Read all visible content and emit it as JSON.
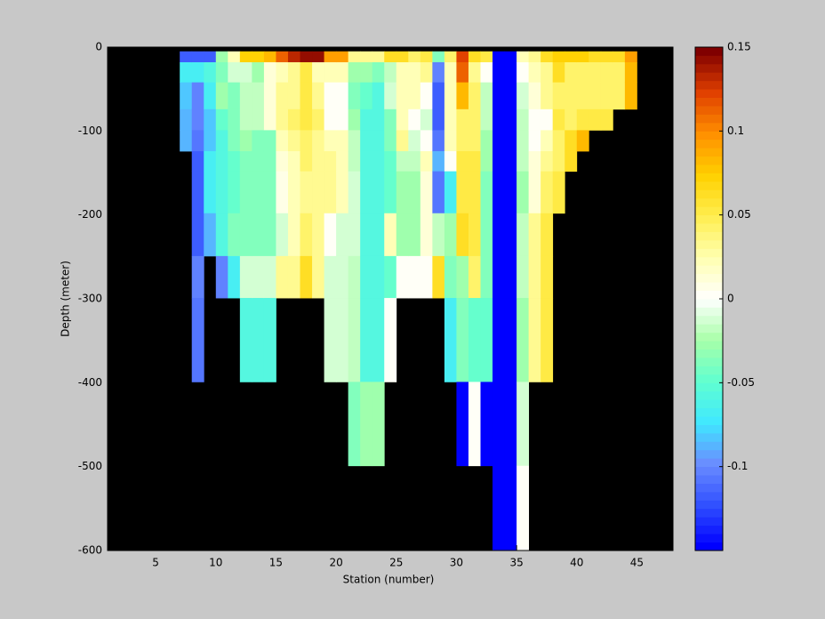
{
  "chart_data": {
    "type": "heatmap",
    "xlabel": "Station (number)",
    "ylabel": "Depth (meter)",
    "xlim": [
      1,
      48
    ],
    "xticks": [
      5,
      10,
      15,
      20,
      25,
      30,
      35,
      40,
      45
    ],
    "ylim": [
      -600,
      0
    ],
    "yticks": [
      -600,
      -500,
      -400,
      -300,
      -200,
      -100,
      0
    ],
    "background": "#000000",
    "clim": [
      -0.15,
      0.15
    ],
    "colorbar_ticks": [
      -0.1,
      -0.05,
      0,
      0.05,
      0.1,
      0.15
    ],
    "colormap": [
      "#0000ff",
      "#3050ff",
      "#6a8cff",
      "#40e8ff",
      "#60ffd0",
      "#a8ffa8",
      "#ffffff",
      "#ffffb0",
      "#ffee50",
      "#ffd000",
      "#ff9000",
      "#e04000",
      "#800000"
    ],
    "x_edges": [
      7,
      8,
      9,
      10,
      11,
      12,
      13,
      14,
      15,
      16,
      17,
      18,
      19,
      20,
      21,
      22,
      23,
      24,
      25,
      26,
      27,
      28,
      29,
      30,
      31,
      32,
      33,
      34,
      35,
      36,
      37,
      38,
      39,
      40,
      41,
      42,
      43,
      44,
      45
    ],
    "y_edges": [
      -5,
      -18,
      -42,
      -74,
      -99,
      -124,
      -148,
      -198,
      -249,
      -299,
      -399,
      -499,
      -600
    ],
    "values": [
      [
        -0.12,
        -0.07,
        -0.08,
        -0.09,
        -0.09,
        null,
        null,
        null,
        null,
        null,
        null,
        null
      ],
      [
        -0.12,
        -0.07,
        -0.1,
        -0.1,
        -0.11,
        -0.12,
        -0.12,
        -0.12,
        -0.1,
        -0.11,
        null,
        null
      ],
      [
        -0.12,
        -0.06,
        -0.07,
        -0.08,
        -0.08,
        -0.07,
        -0.07,
        -0.09,
        null,
        null,
        null,
        null
      ],
      [
        -0.03,
        -0.04,
        -0.03,
        -0.05,
        -0.06,
        -0.06,
        -0.06,
        -0.06,
        -0.1,
        null,
        null,
        null
      ],
      [
        0.02,
        -0.01,
        -0.04,
        -0.04,
        -0.04,
        -0.05,
        -0.05,
        -0.04,
        -0.07,
        null,
        null,
        null
      ],
      [
        0.07,
        -0.01,
        -0.02,
        -0.02,
        -0.03,
        -0.04,
        -0.04,
        -0.04,
        -0.01,
        -0.06,
        null,
        null
      ],
      [
        0.07,
        -0.03,
        -0.02,
        -0.02,
        -0.04,
        -0.04,
        -0.04,
        -0.04,
        -0.01,
        -0.06,
        null,
        null
      ],
      [
        0.08,
        0.01,
        0.01,
        0.01,
        -0.04,
        -0.04,
        -0.04,
        -0.04,
        -0.01,
        -0.06,
        null,
        null
      ],
      [
        0.11,
        0.02,
        0.03,
        0.03,
        0.02,
        0.01,
        0.005,
        -0.01,
        0.03,
        null,
        null,
        null
      ],
      [
        0.13,
        0.03,
        0.03,
        0.04,
        0.03,
        0.02,
        0.02,
        0.02,
        0.03,
        null,
        null,
        null
      ],
      [
        0.14,
        0.05,
        0.05,
        0.05,
        0.04,
        0.04,
        0.03,
        0.04,
        0.06,
        null,
        null,
        null
      ],
      [
        0.14,
        0.02,
        0.03,
        0.04,
        0.03,
        0.03,
        0.03,
        0.03,
        0.03,
        null,
        null,
        null
      ],
      [
        0.09,
        0.02,
        0,
        0,
        0.02,
        0.03,
        0.03,
        0,
        -0.01,
        -0.01,
        null,
        null
      ],
      [
        0.09,
        0.02,
        0,
        0,
        0.02,
        0.02,
        0.02,
        -0.01,
        -0.01,
        -0.01,
        null,
        null
      ],
      [
        0.03,
        -0.03,
        -0.04,
        -0.03,
        -0.02,
        -0.02,
        -0.01,
        -0.01,
        -0.02,
        -0.02,
        -0.04,
        null
      ],
      [
        0.03,
        -0.03,
        -0.05,
        -0.06,
        -0.06,
        -0.06,
        -0.06,
        -0.06,
        -0.06,
        -0.06,
        -0.03,
        null
      ],
      [
        0.03,
        -0.04,
        -0.06,
        -0.06,
        -0.06,
        -0.06,
        -0.06,
        -0.06,
        -0.06,
        -0.06,
        -0.03,
        null
      ],
      [
        0.06,
        -0.02,
        -0.01,
        -0.04,
        -0.04,
        -0.05,
        -0.05,
        0.02,
        -0.05,
        0,
        null,
        null
      ],
      [
        0.06,
        0.02,
        0.02,
        0.02,
        0.03,
        -0.02,
        -0.03,
        -0.03,
        0,
        null,
        null,
        null
      ],
      [
        0.04,
        0.02,
        0.02,
        0,
        -0.01,
        -0.02,
        -0.03,
        -0.03,
        0,
        null,
        null,
        null
      ],
      [
        0.05,
        0.03,
        0,
        -0.01,
        0,
        0.02,
        0.01,
        0.01,
        0,
        null,
        null,
        null
      ],
      [
        -0.04,
        -0.1,
        -0.12,
        -0.12,
        -0.11,
        -0.09,
        -0.11,
        -0.02,
        0.06,
        null,
        null,
        null
      ],
      [
        0.04,
        0.02,
        0.02,
        0.02,
        0.02,
        0,
        -0.07,
        -0.03,
        -0.04,
        -0.07,
        null,
        null
      ],
      [
        0.12,
        0.11,
        0.08,
        0.04,
        0.04,
        0.05,
        0.05,
        0.06,
        -0.03,
        -0.04,
        -0.15,
        null
      ],
      [
        0.06,
        0.03,
        0.04,
        0.04,
        0.04,
        0.05,
        0.05,
        0.05,
        0.04,
        -0.05,
        0,
        null
      ],
      [
        0.05,
        0,
        -0.02,
        -0.02,
        -0.03,
        -0.03,
        -0.04,
        -0.04,
        -0.04,
        -0.05,
        -0.15,
        null
      ],
      [
        -0.15,
        -0.15,
        -0.15,
        -0.15,
        -0.15,
        -0.15,
        -0.15,
        -0.15,
        -0.15,
        -0.15,
        -0.15,
        -0.15
      ],
      [
        -0.15,
        -0.15,
        -0.15,
        -0.15,
        -0.15,
        -0.15,
        -0.15,
        -0.15,
        -0.15,
        -0.15,
        -0.15,
        -0.15
      ],
      [
        0.02,
        0,
        -0.01,
        -0.02,
        -0.02,
        -0.02,
        -0.03,
        -0.02,
        -0.02,
        -0.03,
        -0.01,
        0
      ],
      [
        0.03,
        0.02,
        0.01,
        0,
        0,
        0.01,
        0.01,
        0.03,
        0.03,
        0.03,
        null,
        null
      ],
      [
        0.06,
        0.03,
        0.03,
        0,
        0.02,
        0.03,
        0.04,
        0.05,
        0.05,
        0.05,
        null,
        null
      ],
      [
        0.07,
        0.06,
        0.04,
        0.05,
        0.04,
        0.04,
        0.05,
        null,
        null,
        null,
        null,
        null
      ],
      [
        0.07,
        0.04,
        0.04,
        0.04,
        0.06,
        0.06,
        null,
        null,
        null,
        null,
        null,
        null
      ],
      [
        0.07,
        0.04,
        0.04,
        0.05,
        0.08,
        null,
        null,
        null,
        null,
        null,
        null,
        null
      ],
      [
        0.06,
        0.04,
        0.04,
        0.05,
        null,
        null,
        null,
        null,
        null,
        null,
        null,
        null
      ],
      [
        0.06,
        0.04,
        0.04,
        0.05,
        null,
        null,
        null,
        null,
        null,
        null,
        null,
        null
      ],
      [
        0.06,
        0.04,
        0.04,
        null,
        null,
        null,
        null,
        null,
        null,
        null,
        null,
        null
      ],
      [
        0.09,
        0.08,
        0.08,
        null,
        null,
        null,
        null,
        null,
        null,
        null,
        null,
        null
      ]
    ]
  }
}
